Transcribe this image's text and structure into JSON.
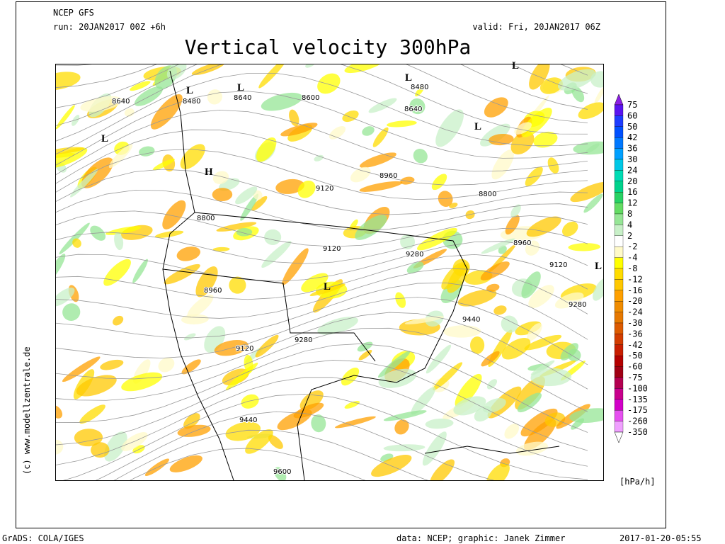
{
  "header": {
    "model": "NCEP GFS",
    "run": "run: 20JAN2017 00Z +6h",
    "valid": "valid: Fri, 20JAN2017 06Z"
  },
  "title": "Vertical velocity 300hPa",
  "contour_labels": [
    "8640",
    "8480",
    "8640",
    "8600",
    "8480",
    "8640",
    "8960",
    "9120",
    "8800",
    "8800",
    "9120",
    "9280",
    "8960",
    "9120",
    "8960",
    "9280",
    "9440",
    "9280",
    "9120",
    "9440",
    "9600"
  ],
  "pressure_centers": [
    "L",
    "L",
    "L",
    "L",
    "L",
    "L",
    "H",
    "L",
    "L"
  ],
  "legend": {
    "labels": [
      "75",
      "60",
      "50",
      "42",
      "36",
      "30",
      "24",
      "20",
      "16",
      "12",
      "8",
      "4",
      "2",
      "-2",
      "-4",
      "-8",
      "-12",
      "-16",
      "-20",
      "-24",
      "-30",
      "-36",
      "-42",
      "-50",
      "-60",
      "-75",
      "-100",
      "-135",
      "-175",
      "-260",
      "-350"
    ],
    "colors": [
      "#8c1ee6",
      "#5a14f0",
      "#1e3cff",
      "#0050ff",
      "#0078ff",
      "#00a0ff",
      "#00c8e6",
      "#00dcb4",
      "#00d28c",
      "#28d264",
      "#64dc64",
      "#96e696",
      "#c8f0c8",
      "#ffffff",
      "#fffac8",
      "#ffff00",
      "#ffdc00",
      "#ffc800",
      "#ffa000",
      "#f08c00",
      "#e67800",
      "#dc5a00",
      "#d23c00",
      "#c81e00",
      "#b40000",
      "#a00014",
      "#b40050",
      "#c8008c",
      "#d200c8",
      "#e650f0",
      "#f0a0ff",
      "#ffffff"
    ],
    "unit": "[hPa/h]"
  },
  "credit": "(c) www.modellzentrale.de",
  "footer": {
    "software": "GrADS: COLA/IGES",
    "source": "data: NCEP; graphic: Janek Zimmer",
    "timestamp": "2017-01-20-05:55"
  }
}
